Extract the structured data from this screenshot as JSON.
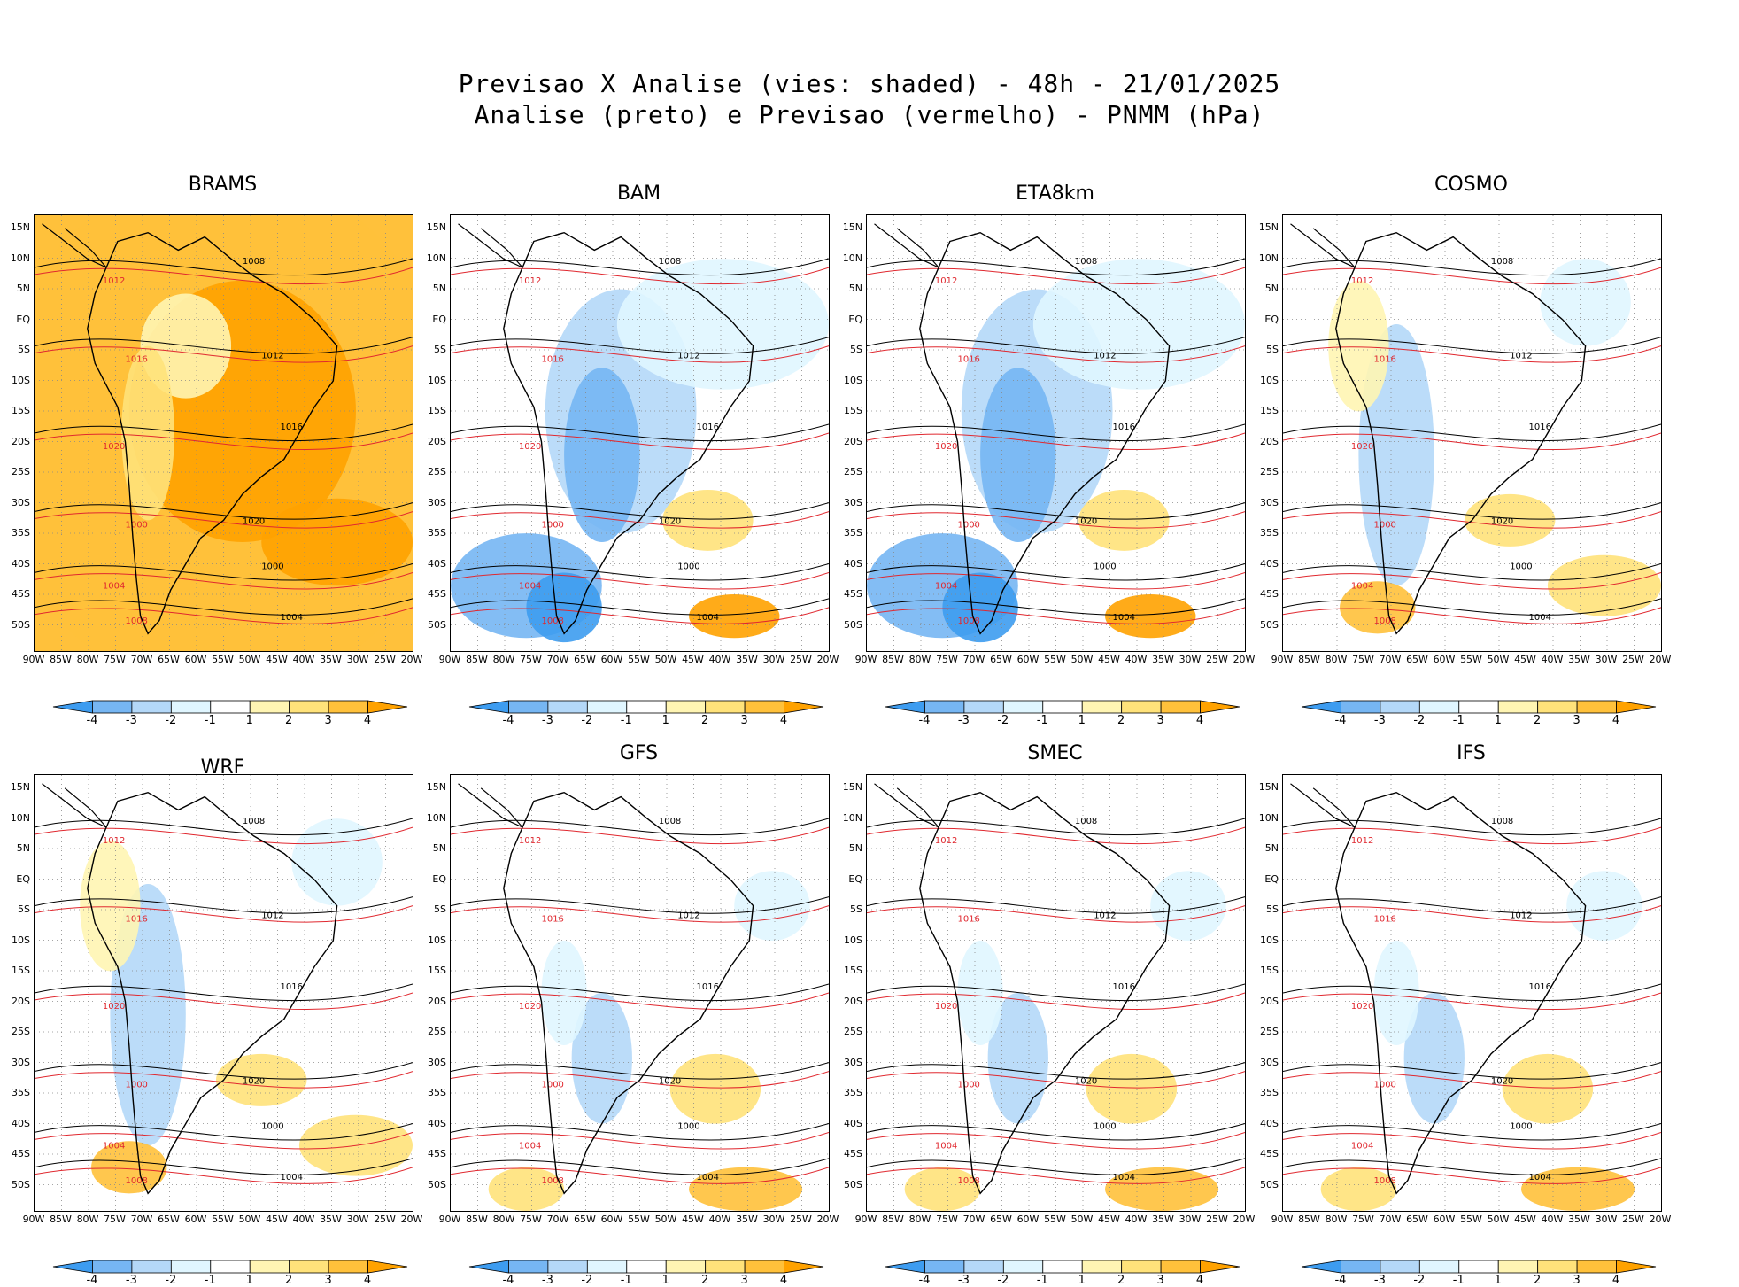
{
  "title": {
    "line1": "Previsao X Analise (vies: shaded) - 48h - 21/01/2025",
    "line2": "Analise (preto) e Previsao (vermelho) - PNMM (hPa)"
  },
  "panels": [
    {
      "name": "BRAMS",
      "mode": "warm"
    },
    {
      "name": "BAM",
      "mode": "cool"
    },
    {
      "name": "ETA8km",
      "mode": "cool"
    },
    {
      "name": "COSMO",
      "mode": "mixed"
    },
    {
      "name": "WRF",
      "mode": "mixed"
    },
    {
      "name": "GFS",
      "mode": "light"
    },
    {
      "name": "SMEC",
      "mode": "light"
    },
    {
      "name": "IFS",
      "mode": "light"
    }
  ],
  "lat_labels": [
    "15N",
    "10N",
    "5N",
    "EQ",
    "5S",
    "10S",
    "15S",
    "20S",
    "25S",
    "30S",
    "35S",
    "40S",
    "45S",
    "50S"
  ],
  "lon_labels": [
    "90W",
    "85W",
    "80W",
    "75W",
    "70W",
    "65W",
    "60W",
    "55W",
    "50W",
    "45W",
    "40W",
    "35W",
    "30W",
    "25W",
    "20W"
  ],
  "isobars": [
    "1000",
    "1004",
    "1008",
    "1012",
    "1016",
    "1020"
  ],
  "colorbar": {
    "labels": [
      "-4",
      "-3",
      "-2",
      "-1",
      "1",
      "2",
      "3",
      "4"
    ],
    "colors": [
      "#3d9cf0",
      "#76b6f3",
      "#b4d8f8",
      "#e0f6ff",
      "#ffffff",
      "#fff5b3",
      "#ffe27a",
      "#ffc13b",
      "#ffa200"
    ]
  },
  "colors": {
    "analysis": "#000000",
    "forecast": "#e0282f"
  }
}
